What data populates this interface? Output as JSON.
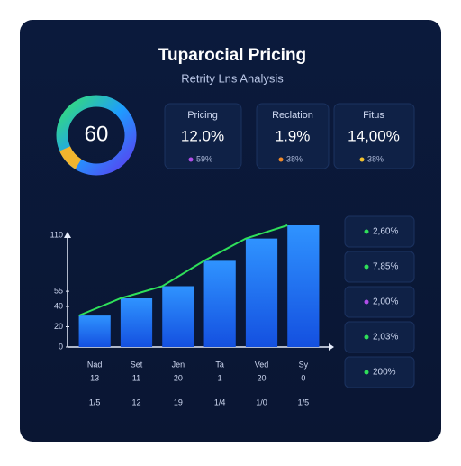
{
  "header": {
    "title": "Tuparocial Pricing",
    "subtitle": "Retrity Lns Analysis"
  },
  "gauge": {
    "label": "60"
  },
  "kpis": [
    {
      "label": "Pricing",
      "value": "12.0%",
      "sub": "59%",
      "dot": "#b04ee8"
    },
    {
      "label": "Reclation",
      "value": "1.9%",
      "sub": "38%",
      "dot": "#f08a2a"
    },
    {
      "label": "Fitus",
      "value": "14,00%",
      "sub": "38%",
      "dot": "#f2c12e"
    }
  ],
  "chart_data": {
    "type": "bar",
    "categories": [
      "Nad",
      "Set",
      "Jen",
      "Ta",
      "Ved",
      "Sy"
    ],
    "sublabels": [
      [
        "13",
        "11",
        "20",
        "1",
        "20",
        "0"
      ],
      [
        "1/5",
        "12",
        "19",
        "1/4",
        "1/0",
        "1/5"
      ]
    ],
    "values": [
      31,
      48,
      60,
      85,
      107,
      120
    ],
    "color": "#1e7bff",
    "line_color": "#2fe05a",
    "ylim": [
      0,
      120
    ],
    "yticks": [
      0,
      20,
      40,
      55,
      110
    ]
  },
  "side": [
    {
      "label": "2,60%",
      "dot": "#2fe05a"
    },
    {
      "label": "7,85%",
      "dot": "#2fe05a"
    },
    {
      "label": "2,00%",
      "dot": "#b04ee8"
    },
    {
      "label": "2,03%",
      "dot": "#2fe05a"
    },
    {
      "label": "200%",
      "dot": "#2fe05a"
    }
  ]
}
